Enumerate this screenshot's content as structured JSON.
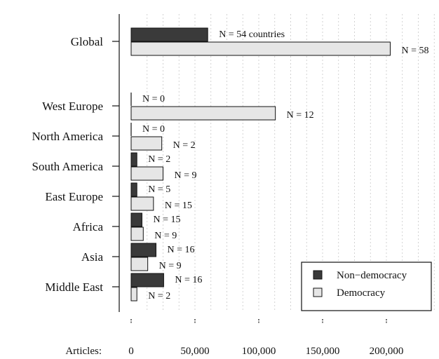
{
  "chart_data": {
    "type": "bar",
    "orientation": "horizontal",
    "categories": [
      "Global",
      "West Europe",
      "North America",
      "South America",
      "East Europe",
      "Africa",
      "Asia",
      "Middle East"
    ],
    "series": [
      {
        "name": "Non−democracy",
        "color": "#3a3a3a",
        "values": [
          60000,
          0,
          0,
          4500,
          4500,
          8500,
          19500,
          25500
        ],
        "labels": [
          "N = 54 countries",
          "N = 0",
          "N = 0",
          "N = 2",
          "N = 5",
          "N = 15",
          "N = 16",
          "N = 16"
        ]
      },
      {
        "name": "Democracy",
        "color": "#e6e6e6",
        "values": [
          203000,
          113000,
          24000,
          25000,
          17500,
          9500,
          13000,
          4500
        ],
        "labels": [
          "N = 58",
          "N = 12",
          "N = 2",
          "N = 9",
          "N = 15",
          "N = 9",
          "N = 9",
          "N = 2"
        ]
      }
    ],
    "x_axis_title": "Articles:",
    "xticks": [
      0,
      50000,
      100000,
      150000,
      200000
    ],
    "xtick_labels": [
      "0",
      "50,000",
      "100,000",
      "150,000",
      "200,000"
    ],
    "xlim": [
      0,
      240000
    ],
    "grid": "vertical dotted",
    "legend_position": "bottom-right"
  }
}
